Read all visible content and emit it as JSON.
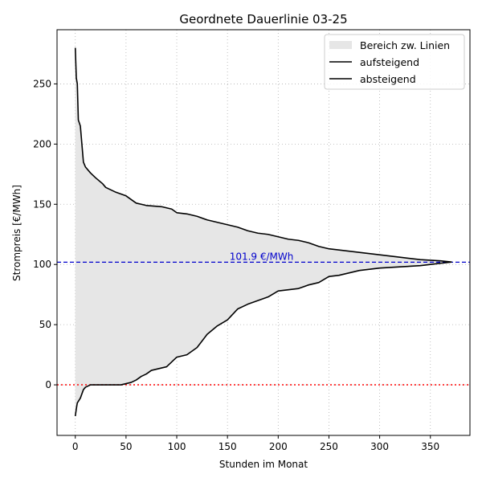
{
  "chart_data": {
    "type": "line",
    "title": "Geordnete Dauerlinie 03-25",
    "xlabel": "Stunden im Monat",
    "ylabel": "Strompreis [€/MWh]",
    "xlim": [
      -18,
      389
    ],
    "ylim": [
      -42,
      295
    ],
    "x_ticks": [
      0,
      50,
      100,
      150,
      200,
      250,
      300,
      350
    ],
    "y_ticks": [
      0,
      50,
      100,
      150,
      200,
      250
    ],
    "grid": true,
    "legend_placement": "top-right",
    "legend": [
      {
        "label": "Bereich zw. Linien",
        "kind": "area",
        "color": "#e6e6e6"
      },
      {
        "label": "aufsteigend",
        "kind": "line",
        "color": "#000000"
      },
      {
        "label": "absteigend",
        "kind": "line",
        "color": "#000000"
      }
    ],
    "mean_line": {
      "y": 101.9,
      "label": "101.9 €/MWh",
      "color": "#0000cc"
    },
    "zero_line": {
      "y": 0,
      "color": "#ff0000"
    },
    "series": [
      {
        "name": "aufsteigend",
        "color": "#000000",
        "x": [
          0,
          1,
          2,
          5,
          8,
          10,
          15,
          20,
          30,
          45,
          50,
          55,
          60,
          65,
          70,
          75,
          80,
          90,
          100,
          110,
          120,
          130,
          140,
          150,
          160,
          170,
          180,
          190,
          200,
          210,
          220,
          230,
          240,
          250,
          260,
          270,
          280,
          300,
          320,
          340,
          360,
          371
        ],
        "y": [
          -26,
          -20,
          -15,
          -11,
          -4,
          -2,
          0,
          0,
          0,
          0,
          1,
          2,
          4,
          7,
          9,
          12,
          13,
          15,
          23,
          25,
          31,
          42,
          49,
          54,
          63,
          67,
          70,
          73,
          78,
          79,
          80,
          83,
          85,
          90,
          91,
          93,
          95,
          97,
          98,
          99,
          101,
          102
        ]
      },
      {
        "name": "absteigend",
        "color": "#000000",
        "x": [
          0,
          1,
          2,
          3,
          5,
          8,
          10,
          15,
          20,
          27,
          30,
          40,
          50,
          55,
          60,
          70,
          85,
          95,
          100,
          110,
          120,
          130,
          140,
          150,
          160,
          170,
          180,
          190,
          200,
          210,
          220,
          230,
          240,
          250,
          260,
          270,
          280,
          300,
          320,
          340,
          360,
          371
        ],
        "y": [
          280,
          255,
          250,
          220,
          215,
          185,
          181,
          176,
          172,
          167,
          164,
          160,
          157,
          154,
          151,
          149,
          148,
          146,
          143,
          142,
          140,
          137,
          135,
          133,
          131,
          128,
          126,
          125,
          123,
          121,
          120,
          118,
          115,
          113,
          112,
          111,
          110,
          108,
          106,
          104,
          103,
          102
        ]
      }
    ]
  }
}
